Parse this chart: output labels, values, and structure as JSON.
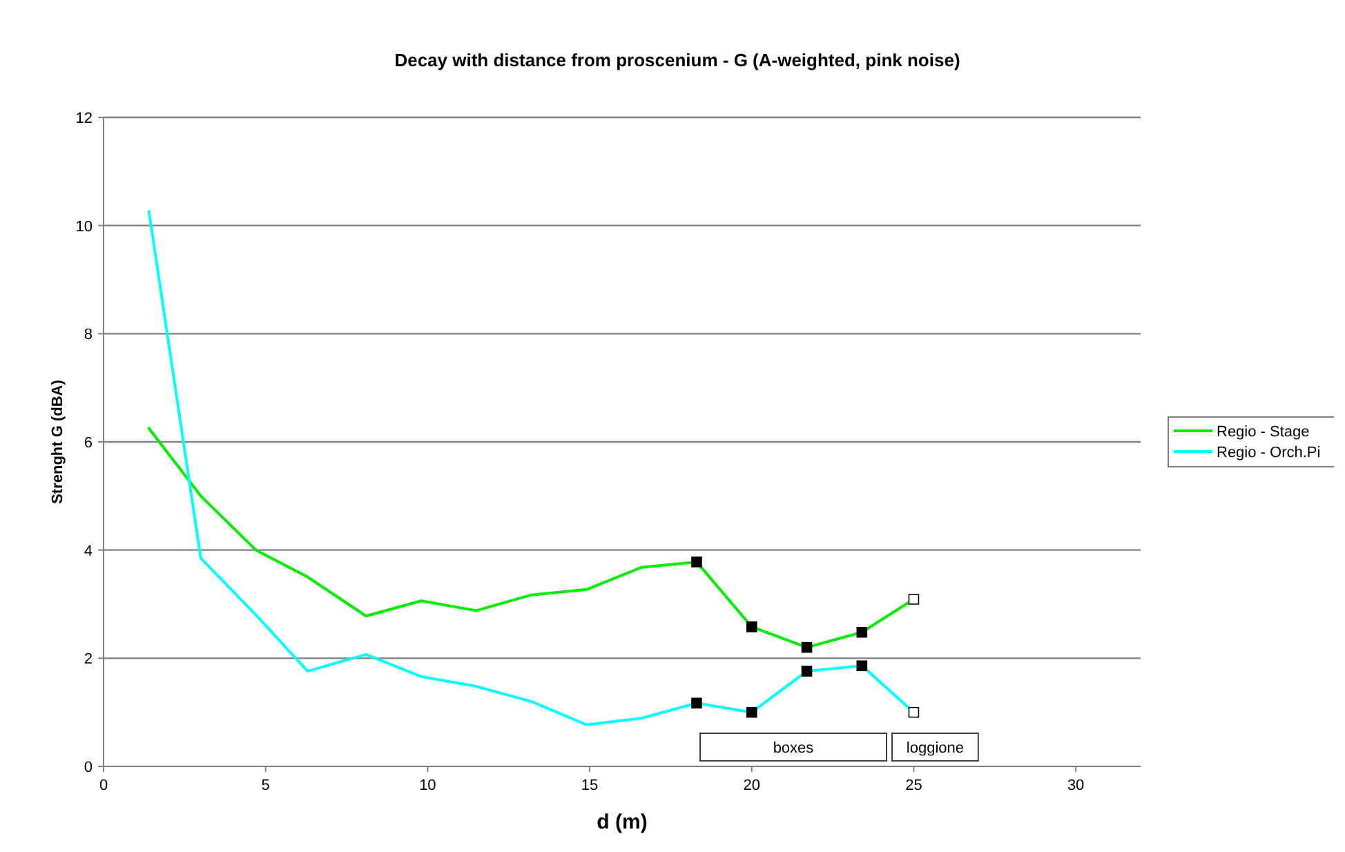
{
  "chart_data": {
    "type": "line",
    "title": "Decay with distance from proscenium - G (A-weighted, pink noise)",
    "xlabel": "d (m)",
    "ylabel": "Strenght G (dBA)",
    "xlim": [
      0,
      32
    ],
    "xticks": [
      0,
      5,
      10,
      15,
      20,
      25,
      30
    ],
    "ylim": [
      0,
      12
    ],
    "yticks": [
      0,
      2,
      4,
      6,
      8,
      10,
      12
    ],
    "grid": "y",
    "legend": "right",
    "marker": "none",
    "series": [
      {
        "name": "Regio - Stage",
        "color": "#00ee00",
        "x": [
          1.4,
          3.0,
          4.7,
          6.3,
          8.1,
          9.8,
          11.5,
          13.2,
          14.9,
          16.6,
          18.3,
          20.0,
          21.7,
          23.4,
          25.0
        ],
        "values": [
          6.25,
          5.0,
          4.0,
          3.5,
          2.78,
          3.06,
          2.88,
          3.17,
          3.27,
          3.68,
          3.78,
          2.58,
          2.2,
          2.48,
          3.09
        ]
      },
      {
        "name": "Regio - Orch.Pi",
        "color": "#00ffff",
        "x": [
          1.4,
          3.0,
          4.7,
          6.3,
          8.1,
          9.8,
          11.5,
          13.2,
          14.9,
          16.6,
          18.3,
          20.0,
          21.7,
          23.4,
          25.0
        ],
        "values": [
          10.26,
          3.85,
          2.8,
          1.76,
          2.07,
          1.66,
          1.48,
          1.2,
          0.77,
          0.89,
          1.17,
          1.0,
          1.76,
          1.86,
          1.0
        ]
      },
      {
        "type": "scatter",
        "marker": "square",
        "color": "#000000",
        "x": [
          18.3,
          20.0,
          21.7,
          23.4,
          18.3,
          20.0,
          21.7,
          23.4
        ],
        "values": [
          3.78,
          2.58,
          2.2,
          2.48,
          1.17,
          1.0,
          1.76,
          1.86
        ]
      },
      {
        "type": "scatter",
        "marker": "square",
        "color": "#ffffff",
        "x": [
          25.0,
          25.0
        ],
        "values": [
          3.09,
          1.0
        ]
      }
    ],
    "annotations": [
      "boxes",
      "loggione"
    ]
  }
}
